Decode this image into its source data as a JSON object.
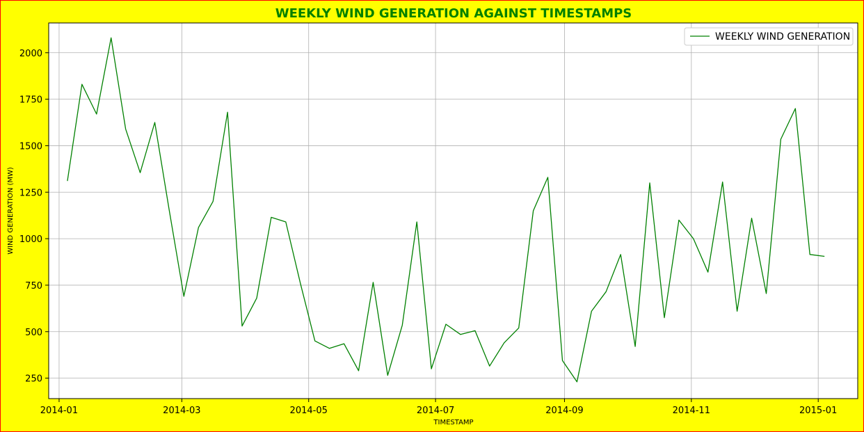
{
  "chart_data": {
    "type": "line",
    "title": "WEEKLY WIND GENERATION AGAINST TIMESTAMPS",
    "xlabel": "TIMESTAMP",
    "ylabel": "WIND GENERATION (MW)",
    "xlim": [
      "2013-12-27",
      "2015-01-20"
    ],
    "ylim": [
      140,
      2160
    ],
    "x_ticks": [
      "2014-01",
      "2014-03",
      "2014-05",
      "2014-07",
      "2014-09",
      "2014-11",
      "2015-01"
    ],
    "y_ticks": [
      250,
      500,
      750,
      1000,
      1250,
      1500,
      1750,
      2000
    ],
    "grid": true,
    "legend_position": "top-right",
    "series": [
      {
        "name": "WEEKLY WIND GENERATION",
        "color": "#008000",
        "x": [
          "2014-01-05",
          "2014-01-12",
          "2014-01-19",
          "2014-01-26",
          "2014-02-02",
          "2014-02-09",
          "2014-02-16",
          "2014-02-23",
          "2014-03-02",
          "2014-03-09",
          "2014-03-16",
          "2014-03-23",
          "2014-03-30",
          "2014-04-06",
          "2014-04-13",
          "2014-04-20",
          "2014-04-27",
          "2014-05-04",
          "2014-05-11",
          "2014-05-18",
          "2014-05-25",
          "2014-06-01",
          "2014-06-08",
          "2014-06-15",
          "2014-06-22",
          "2014-06-29",
          "2014-07-06",
          "2014-07-13",
          "2014-07-20",
          "2014-07-27",
          "2014-08-03",
          "2014-08-10",
          "2014-08-17",
          "2014-08-24",
          "2014-08-31",
          "2014-09-07",
          "2014-09-14",
          "2014-09-21",
          "2014-09-28",
          "2014-10-05",
          "2014-10-12",
          "2014-10-19",
          "2014-10-26",
          "2014-11-02",
          "2014-11-09",
          "2014-11-16",
          "2014-11-23",
          "2014-11-30",
          "2014-12-07",
          "2014-12-14",
          "2014-12-21",
          "2014-12-28",
          "2015-01-04"
        ],
        "values": [
          1310,
          1830,
          1670,
          2080,
          1590,
          1355,
          1625,
          1150,
          690,
          1060,
          1200,
          1680,
          530,
          680,
          1115,
          1090,
          760,
          450,
          410,
          435,
          290,
          765,
          265,
          535,
          1090,
          300,
          540,
          485,
          505,
          315,
          440,
          520,
          1150,
          1330,
          345,
          230,
          610,
          715,
          915,
          420,
          1300,
          575,
          1100,
          1000,
          820,
          1305,
          610,
          1110,
          705,
          1535,
          1700,
          915,
          905
        ]
      }
    ]
  }
}
